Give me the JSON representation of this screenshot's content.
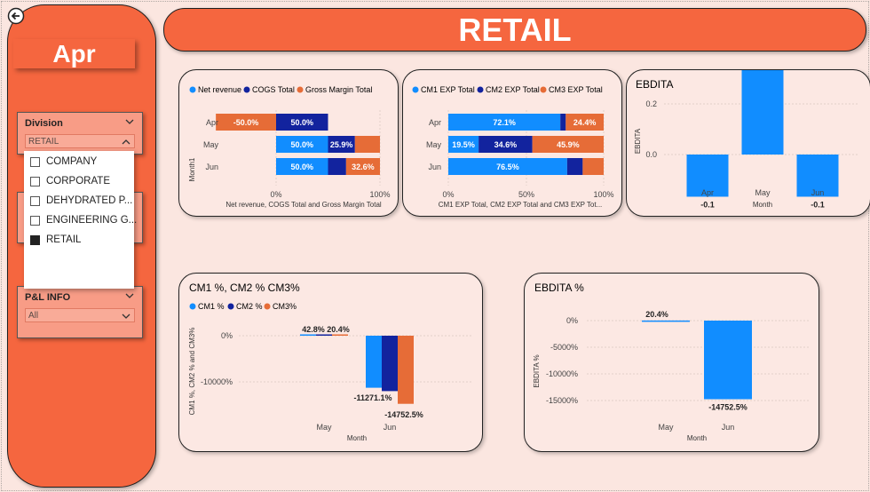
{
  "banner": {
    "title": "RETAIL"
  },
  "sidebar": {
    "month": "Apr",
    "division": {
      "title": "Division",
      "selected": "RETAIL",
      "options": [
        "COMPANY",
        "CORPORATE",
        "DEHYDRATED P...",
        "ENGINEERING G...",
        "RETAIL"
      ],
      "checked": [
        false,
        false,
        false,
        false,
        true
      ]
    },
    "pl_info": {
      "title": "P&L INFO",
      "selected": "All"
    }
  },
  "colors": {
    "blue": "#118dff",
    "navy": "#12239e",
    "orange": "#e66c37",
    "accent": "#f5663f"
  },
  "chart_data": [
    {
      "type": "bar",
      "orientation": "horizontal",
      "stacked": "100%",
      "title": "",
      "legend": [
        "Net revenue",
        "COGS Total",
        "Gross Margin Total"
      ],
      "categories": [
        "Apr",
        "May",
        "Jun"
      ],
      "ylabel": "Month1",
      "xlabel": "Net revenue, COGS Total and Gross Margin Total",
      "xticks": [
        "0%",
        "100%"
      ],
      "segments": [
        [
          {
            "series": "Gross Margin Total",
            "value": -50.0,
            "label": "-50.0%"
          },
          {
            "series": "COGS Total",
            "value": 50.0,
            "label": "50.0%"
          }
        ],
        [
          {
            "series": "Net revenue",
            "value": 50.0,
            "label": "50.0%"
          },
          {
            "series": "COGS Total",
            "value": 25.9,
            "label": "25.9%"
          },
          {
            "series": "Gross Margin Total",
            "value": 24.1,
            "label": ""
          }
        ],
        [
          {
            "series": "Net revenue",
            "value": 50.0,
            "label": "50.0%"
          },
          {
            "series": "COGS Total",
            "value": 17.4,
            "label": ""
          },
          {
            "series": "Gross Margin Total",
            "value": 32.6,
            "label": "32.6%"
          }
        ]
      ]
    },
    {
      "type": "bar",
      "orientation": "horizontal",
      "stacked": "100%",
      "title": "",
      "legend": [
        "CM1 EXP Total",
        "CM2 EXP Total",
        "CM3 EXP Total"
      ],
      "categories": [
        "Apr",
        "May",
        "Jun"
      ],
      "xlabel": "CM1 EXP Total, CM2 EXP Total and CM3 EXP Tot...",
      "xticks": [
        "0%",
        "50%",
        "100%"
      ],
      "segments": [
        [
          {
            "series": "CM1 EXP Total",
            "value": 72.1,
            "label": "72.1%"
          },
          {
            "series": "CM2 EXP Total",
            "value": 3.5,
            "label": ""
          },
          {
            "series": "CM3 EXP Total",
            "value": 24.4,
            "label": "24.4%"
          }
        ],
        [
          {
            "series": "CM1 EXP Total",
            "value": 19.5,
            "label": "19.5%"
          },
          {
            "series": "CM2 EXP Total",
            "value": 34.6,
            "label": "34.6%"
          },
          {
            "series": "CM3 EXP Total",
            "value": 45.9,
            "label": "45.9%"
          }
        ],
        [
          {
            "series": "CM1 EXP Total",
            "value": 76.5,
            "label": "76.5%"
          },
          {
            "series": "CM2 EXP Total",
            "value": 10.0,
            "label": ""
          },
          {
            "series": "CM3 EXP Total",
            "value": 13.5,
            "label": ""
          }
        ]
      ]
    },
    {
      "type": "bar",
      "title": "EBDITA",
      "categories": [
        "Apr",
        "May",
        "Jun"
      ],
      "values": [
        -0.1,
        0.2,
        -0.1
      ],
      "data_labels": [
        "-0.1",
        "0.2",
        "-0.1"
      ],
      "ylabel": "EBDITA",
      "xlabel": "Month",
      "yticks": [
        "0.2",
        "0.0"
      ],
      "ylim": [
        -0.12,
        0.24
      ]
    },
    {
      "type": "bar",
      "title": "CM1 %, CM2 % CM3%",
      "legend": [
        "CM1 %",
        "CM2 %",
        "CM3%"
      ],
      "categories": [
        "May",
        "Jun"
      ],
      "series": [
        {
          "name": "CM1 %",
          "values": [
            42.8,
            -11271.1
          ]
        },
        {
          "name": "CM2 %",
          "values": [
            0,
            -12000
          ]
        },
        {
          "name": "CM3%",
          "values": [
            20.4,
            -14752.5
          ]
        }
      ],
      "data_labels": [
        "42.8%",
        "20.4%",
        "-11271.1%",
        "-14752.5%"
      ],
      "ylabel": "CM1 %, CM2 % and CM3%",
      "xlabel": "Month",
      "yticks": [
        "0%",
        "-10000%"
      ],
      "ylim": [
        -15500,
        600
      ]
    },
    {
      "type": "bar",
      "title": "EBDITA %",
      "categories": [
        "May",
        "Jun"
      ],
      "values": [
        20.4,
        -14752.5
      ],
      "data_labels": [
        "20.4%",
        "-14752.5%"
      ],
      "ylabel": "EBDITA %",
      "xlabel": "Month",
      "yticks": [
        "0%",
        "-5000%",
        "-10000%",
        "-15000%"
      ],
      "ylim": [
        -16000,
        800
      ]
    }
  ]
}
